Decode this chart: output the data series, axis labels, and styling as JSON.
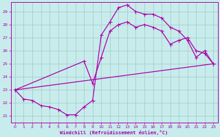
{
  "xlabel": "Windchill (Refroidissement éolien,°C)",
  "bg_color": "#c8ecec",
  "line_color": "#aa00aa",
  "grid_color": "#a0c8c8",
  "ylim": [
    20.5,
    29.7
  ],
  "xlim": [
    -0.5,
    23.5
  ],
  "yticks": [
    21,
    22,
    23,
    24,
    25,
    26,
    27,
    28,
    29
  ],
  "xticks": [
    0,
    1,
    2,
    3,
    4,
    5,
    6,
    7,
    8,
    9,
    10,
    11,
    12,
    13,
    14,
    15,
    16,
    17,
    18,
    19,
    20,
    21,
    22,
    23
  ],
  "line1_x": [
    0,
    1,
    2,
    3,
    4,
    5,
    6,
    7,
    8,
    9,
    10,
    11,
    12,
    13,
    14,
    15,
    16,
    17,
    18,
    19,
    20,
    21,
    22,
    23
  ],
  "line1_y": [
    23.0,
    22.3,
    22.2,
    21.8,
    21.7,
    21.5,
    21.1,
    21.1,
    21.7,
    22.2,
    27.2,
    28.2,
    29.3,
    29.5,
    29.0,
    28.8,
    28.8,
    28.5,
    27.8,
    27.5,
    26.8,
    25.5,
    26.0,
    25.0
  ],
  "line2_x": [
    0,
    23
  ],
  "line2_y": [
    23.0,
    25.0
  ],
  "line3_x": [
    0,
    8,
    9,
    10,
    11,
    12,
    13,
    14,
    15,
    16,
    17,
    18,
    19,
    20,
    21,
    22,
    23
  ],
  "line3_y": [
    23.0,
    25.2,
    23.5,
    25.5,
    27.5,
    28.0,
    28.2,
    27.8,
    28.0,
    27.8,
    27.5,
    26.5,
    26.8,
    27.0,
    26.0,
    25.8,
    25.0
  ]
}
